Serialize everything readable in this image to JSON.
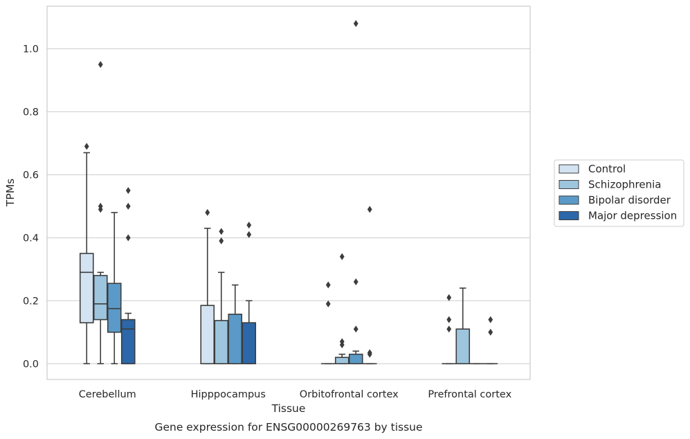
{
  "chart_data": {
    "type": "boxplot",
    "title": "Gene expression for ENSG00000269763 by tissue",
    "xlabel": "Tissue",
    "ylabel": "TPMs",
    "ylim": [
      -0.05,
      1.135
    ],
    "yticks": [
      0.0,
      0.2,
      0.4,
      0.6,
      0.8,
      1.0
    ],
    "ytick_labels": [
      "0.0",
      "0.2",
      "0.4",
      "0.6",
      "0.8",
      "1.0"
    ],
    "grid": "horizontal",
    "legend_position": "right",
    "categories": [
      "Cerebellum",
      "Hipppocampus",
      "Orbitofrontal cortex",
      "Prefrontal cortex"
    ],
    "series": [
      {
        "name": "Control",
        "color": "#d4e3f1",
        "boxes": [
          {
            "q1": 0.13,
            "median": 0.29,
            "q3": 0.35,
            "whislo": 0.0,
            "whishi": 0.67,
            "fliers": [
              0.69
            ]
          },
          {
            "q1": 0.0,
            "median": 0.0,
            "q3": 0.185,
            "whislo": 0.0,
            "whishi": 0.43,
            "fliers": [
              0.48
            ]
          },
          {
            "q1": 0.0,
            "median": 0.0,
            "q3": 0.0,
            "whislo": 0.0,
            "whishi": 0.0,
            "fliers": [
              0.25,
              0.19
            ]
          },
          {
            "q1": 0.0,
            "median": 0.0,
            "q3": 0.0,
            "whislo": 0.0,
            "whishi": 0.0,
            "fliers": [
              0.21,
              0.14,
              0.11
            ]
          }
        ]
      },
      {
        "name": "Schizophrenia",
        "color": "#9dc5de",
        "boxes": [
          {
            "q1": 0.14,
            "median": 0.19,
            "q3": 0.28,
            "whislo": 0.0,
            "whishi": 0.29,
            "fliers": [
              0.95,
              0.5,
              0.49
            ]
          },
          {
            "q1": 0.0,
            "median": 0.0,
            "q3": 0.137,
            "whislo": 0.0,
            "whishi": 0.29,
            "fliers": [
              0.42,
              0.39
            ]
          },
          {
            "q1": 0.0,
            "median": 0.0,
            "q3": 0.02,
            "whislo": 0.0,
            "whishi": 0.03,
            "fliers": [
              0.34,
              0.07,
              0.06
            ]
          },
          {
            "q1": 0.0,
            "median": 0.0,
            "q3": 0.11,
            "whislo": 0.0,
            "whishi": 0.24,
            "fliers": []
          }
        ]
      },
      {
        "name": "Bipolar disorder",
        "color": "#5b9ac8",
        "boxes": [
          {
            "q1": 0.1,
            "median": 0.175,
            "q3": 0.255,
            "whislo": 0.0,
            "whishi": 0.48,
            "fliers": []
          },
          {
            "q1": 0.0,
            "median": 0.0,
            "q3": 0.157,
            "whislo": 0.0,
            "whishi": 0.25,
            "fliers": []
          },
          {
            "q1": 0.0,
            "median": 0.0,
            "q3": 0.03,
            "whislo": 0.0,
            "whishi": 0.04,
            "fliers": [
              1.08,
              0.26,
              0.11
            ]
          },
          {
            "q1": 0.0,
            "median": 0.0,
            "q3": 0.0,
            "whislo": 0.0,
            "whishi": 0.0,
            "fliers": []
          }
        ]
      },
      {
        "name": "Major depression",
        "color": "#2b67a9",
        "boxes": [
          {
            "q1": 0.0,
            "median": 0.11,
            "q3": 0.14,
            "whislo": 0.0,
            "whishi": 0.16,
            "fliers": [
              0.55,
              0.5,
              0.4
            ]
          },
          {
            "q1": 0.0,
            "median": 0.0,
            "q3": 0.13,
            "whislo": 0.0,
            "whishi": 0.2,
            "fliers": [
              0.44,
              0.41
            ]
          },
          {
            "q1": 0.0,
            "median": 0.0,
            "q3": 0.0,
            "whislo": 0.0,
            "whishi": 0.0,
            "fliers": [
              0.49,
              0.035,
              0.03
            ]
          },
          {
            "q1": 0.0,
            "median": 0.0,
            "q3": 0.0,
            "whislo": 0.0,
            "whishi": 0.0,
            "fliers": [
              0.14,
              0.1
            ]
          }
        ]
      }
    ]
  }
}
